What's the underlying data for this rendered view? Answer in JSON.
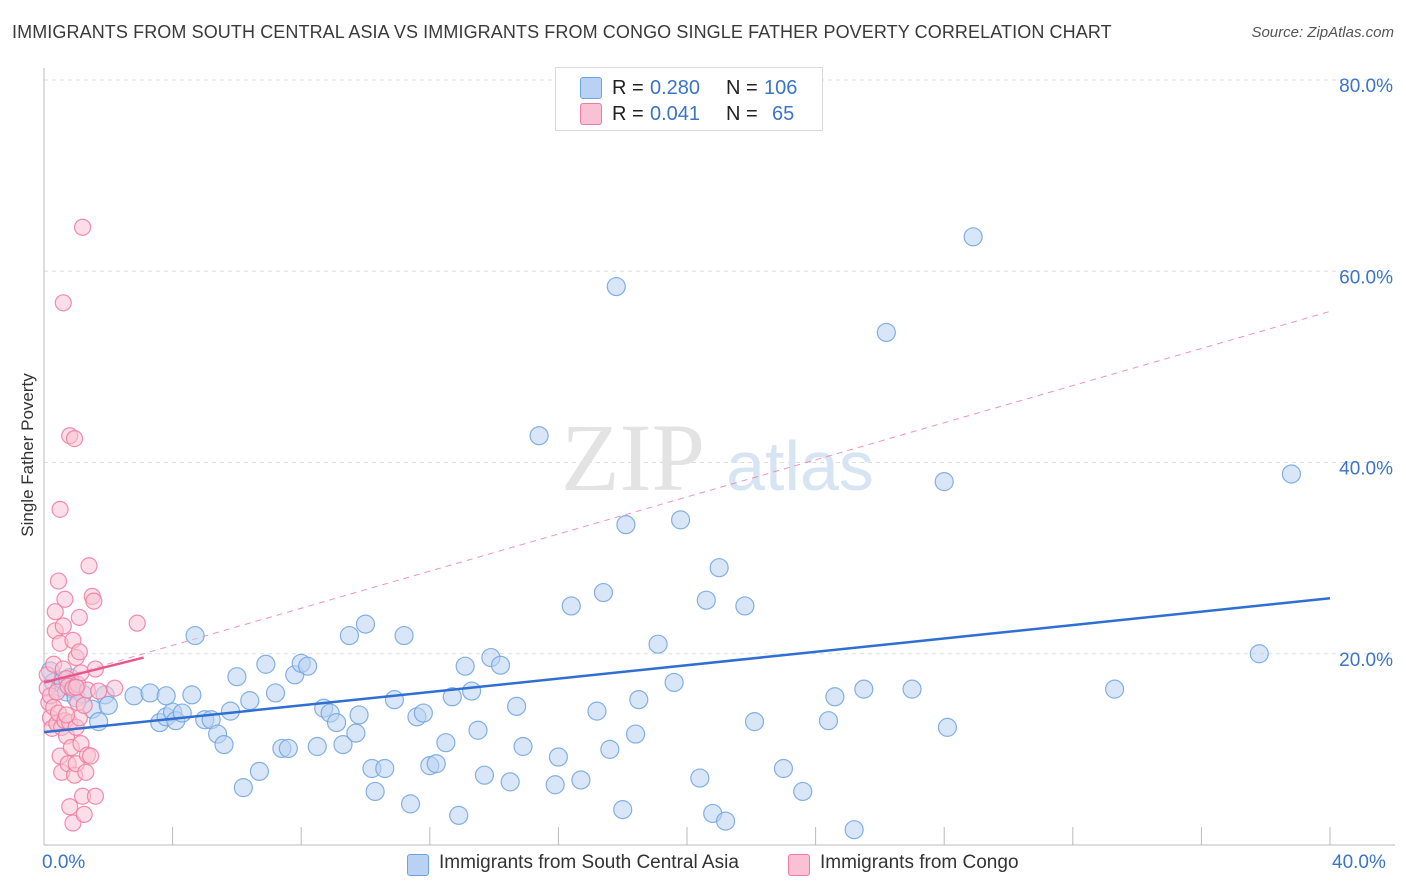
{
  "title": "IMMIGRANTS FROM SOUTH CENTRAL ASIA VS IMMIGRANTS FROM CONGO SINGLE FATHER POVERTY CORRELATION CHART",
  "source": "Source: ZipAtlas.com",
  "watermark": {
    "zip": "ZIP",
    "atlas": "atlas"
  },
  "legend": {
    "rows": [
      {
        "r_label": "R = ",
        "r_value": "0.280",
        "n_label": "N = ",
        "n_value": "106"
      },
      {
        "r_label": "R = ",
        "r_value": "0.041",
        "n_label": "N = ",
        "n_value": "65"
      }
    ]
  },
  "colors": {
    "blue": "#6fa3e0",
    "blue_line": "#2f6fd0",
    "blue_fill": "#b9d2f3",
    "pink": "#f07aa0",
    "pink_line": "#e8578a",
    "pink_fill": "#f8c2d4",
    "grid": "#dddddd",
    "axis_text": "#3b74c9"
  },
  "chart_data": {
    "type": "scatter",
    "title": "IMMIGRANTS FROM SOUTH CENTRAL ASIA VS IMMIGRANTS FROM CONGO SINGLE FATHER POVERTY CORRELATION CHART",
    "xlabel": "",
    "ylabel": "Single Father Poverty",
    "xlim": [
      0,
      40
    ],
    "ylim": [
      0,
      80
    ],
    "x_tick_labels": [
      "0.0%",
      "40.0%"
    ],
    "y_tick_values": [
      20,
      40,
      60,
      80
    ],
    "y_tick_labels": [
      "20.0%",
      "40.0%",
      "60.0%",
      "80.0%"
    ],
    "grid": true,
    "legend_position": "top-center",
    "series": [
      {
        "name": "Immigrants from South Central Asia",
        "color": "#6fa3e0",
        "r": 0.28,
        "n": 106,
        "trend": {
          "x": [
            0,
            40
          ],
          "y": [
            11.8,
            25.8
          ],
          "style": "solid"
        },
        "points": [
          [
            0.2,
            18.2
          ],
          [
            0.3,
            17.0
          ],
          [
            0.5,
            16.5
          ],
          [
            0.6,
            17.2
          ],
          [
            0.7,
            16.0
          ],
          [
            0.8,
            17.5
          ],
          [
            0.9,
            16.3
          ],
          [
            1.0,
            15.4
          ],
          [
            1.2,
            15.8
          ],
          [
            1.5,
            14.2
          ],
          [
            1.7,
            12.9
          ],
          [
            1.9,
            15.7
          ],
          [
            2.0,
            14.6
          ],
          [
            2.8,
            15.6
          ],
          [
            3.3,
            15.9
          ],
          [
            3.6,
            12.8
          ],
          [
            3.8,
            13.4
          ],
          [
            4.0,
            13.9
          ],
          [
            4.1,
            13.0
          ],
          [
            4.3,
            13.8
          ],
          [
            4.6,
            15.7
          ],
          [
            4.7,
            21.9
          ],
          [
            5.0,
            13.1
          ],
          [
            5.2,
            13.1
          ],
          [
            5.4,
            11.6
          ],
          [
            5.6,
            10.5
          ],
          [
            5.8,
            14.0
          ],
          [
            6.0,
            17.6
          ],
          [
            6.2,
            6.0
          ],
          [
            6.4,
            15.1
          ],
          [
            6.7,
            7.7
          ],
          [
            6.9,
            18.9
          ],
          [
            7.2,
            15.9
          ],
          [
            7.4,
            10.1
          ],
          [
            7.6,
            10.1
          ],
          [
            7.8,
            17.8
          ],
          [
            8.0,
            19.0
          ],
          [
            8.2,
            18.7
          ],
          [
            8.5,
            10.3
          ],
          [
            8.7,
            14.3
          ],
          [
            8.9,
            13.8
          ],
          [
            9.1,
            12.8
          ],
          [
            9.3,
            10.5
          ],
          [
            9.5,
            21.9
          ],
          [
            9.7,
            11.7
          ],
          [
            9.8,
            13.6
          ],
          [
            10.0,
            23.1
          ],
          [
            10.2,
            8.0
          ],
          [
            10.3,
            5.6
          ],
          [
            10.6,
            8.0
          ],
          [
            10.9,
            15.2
          ],
          [
            11.2,
            21.9
          ],
          [
            11.4,
            4.3
          ],
          [
            11.6,
            13.4
          ],
          [
            11.8,
            13.8
          ],
          [
            12.0,
            8.3
          ],
          [
            12.2,
            8.5
          ],
          [
            12.5,
            10.7
          ],
          [
            12.7,
            15.5
          ],
          [
            12.9,
            3.1
          ],
          [
            13.1,
            18.7
          ],
          [
            13.3,
            16.1
          ],
          [
            13.5,
            12.0
          ],
          [
            13.7,
            7.3
          ],
          [
            13.9,
            19.6
          ],
          [
            14.2,
            18.8
          ],
          [
            14.5,
            6.6
          ],
          [
            14.7,
            14.5
          ],
          [
            14.9,
            10.3
          ],
          [
            15.4,
            42.8
          ],
          [
            15.9,
            6.3
          ],
          [
            16.0,
            9.2
          ],
          [
            16.4,
            25.0
          ],
          [
            16.7,
            6.8
          ],
          [
            17.2,
            14.0
          ],
          [
            17.4,
            26.4
          ],
          [
            17.6,
            10.0
          ],
          [
            17.8,
            58.4
          ],
          [
            18.0,
            3.7
          ],
          [
            18.1,
            33.5
          ],
          [
            18.4,
            11.6
          ],
          [
            18.5,
            15.2
          ],
          [
            19.1,
            21.0
          ],
          [
            19.6,
            17.0
          ],
          [
            19.8,
            34.0
          ],
          [
            20.4,
            7.0
          ],
          [
            20.6,
            25.6
          ],
          [
            20.8,
            3.3
          ],
          [
            21.0,
            29.0
          ],
          [
            21.2,
            2.5
          ],
          [
            21.8,
            25.0
          ],
          [
            22.1,
            12.9
          ],
          [
            23.0,
            8.0
          ],
          [
            23.6,
            5.6
          ],
          [
            24.4,
            13.0
          ],
          [
            24.6,
            15.5
          ],
          [
            25.2,
            1.6
          ],
          [
            25.5,
            16.3
          ],
          [
            26.2,
            53.6
          ],
          [
            27.0,
            16.3
          ],
          [
            28.1,
            12.3
          ],
          [
            28.0,
            38.0
          ],
          [
            28.9,
            63.6
          ],
          [
            33.3,
            16.3
          ],
          [
            37.8,
            20.0
          ],
          [
            38.8,
            38.8
          ],
          [
            3.8,
            15.6
          ]
        ]
      },
      {
        "name": "Immigrants from Congo",
        "color": "#f07aa0",
        "r": 0.041,
        "n": 65,
        "trend": {
          "x": [
            0,
            3.1
          ],
          "y": [
            17.0,
            19.6
          ],
          "style": "solid"
        },
        "trend_extended": {
          "x": [
            0,
            40
          ],
          "y": [
            17.0,
            55.8
          ],
          "style": "dashed"
        },
        "points": [
          [
            0.1,
            17.8
          ],
          [
            0.1,
            16.4
          ],
          [
            0.15,
            14.9
          ],
          [
            0.2,
            13.3
          ],
          [
            0.2,
            15.6
          ],
          [
            0.25,
            12.2
          ],
          [
            0.3,
            18.9
          ],
          [
            0.3,
            14.4
          ],
          [
            0.35,
            22.4
          ],
          [
            0.35,
            24.4
          ],
          [
            0.4,
            12.7
          ],
          [
            0.4,
            16.0
          ],
          [
            0.45,
            13.8
          ],
          [
            0.45,
            27.6
          ],
          [
            0.5,
            21.1
          ],
          [
            0.5,
            35.1
          ],
          [
            0.5,
            9.3
          ],
          [
            0.55,
            7.6
          ],
          [
            0.55,
            12.3
          ],
          [
            0.6,
            18.4
          ],
          [
            0.6,
            22.9
          ],
          [
            0.6,
            56.7
          ],
          [
            0.65,
            25.7
          ],
          [
            0.65,
            13.0
          ],
          [
            0.7,
            17.4
          ],
          [
            0.7,
            11.4
          ],
          [
            0.75,
            16.6
          ],
          [
            0.75,
            8.5
          ],
          [
            0.8,
            42.8
          ],
          [
            0.8,
            4.0
          ],
          [
            0.8,
            12.8
          ],
          [
            0.85,
            10.2
          ],
          [
            0.9,
            21.4
          ],
          [
            0.9,
            16.4
          ],
          [
            0.9,
            2.3
          ],
          [
            0.95,
            42.5
          ],
          [
            0.95,
            7.3
          ],
          [
            1.0,
            12.3
          ],
          [
            1.0,
            19.6
          ],
          [
            1.0,
            8.5
          ],
          [
            1.05,
            16.8
          ],
          [
            1.05,
            14.9
          ],
          [
            1.1,
            20.2
          ],
          [
            1.1,
            13.3
          ],
          [
            1.1,
            23.8
          ],
          [
            1.15,
            10.6
          ],
          [
            1.15,
            18.0
          ],
          [
            1.2,
            5.1
          ],
          [
            1.2,
            64.6
          ],
          [
            1.25,
            3.2
          ],
          [
            1.25,
            14.6
          ],
          [
            1.3,
            7.6
          ],
          [
            1.35,
            16.2
          ],
          [
            1.35,
            9.4
          ],
          [
            1.4,
            29.2
          ],
          [
            1.45,
            9.3
          ],
          [
            1.5,
            26.0
          ],
          [
            1.55,
            25.5
          ],
          [
            1.6,
            5.1
          ],
          [
            1.6,
            18.4
          ],
          [
            1.7,
            16.1
          ],
          [
            2.2,
            16.4
          ],
          [
            2.9,
            23.2
          ],
          [
            0.7,
            13.6
          ],
          [
            1.0,
            16.5
          ]
        ]
      }
    ]
  },
  "bottom_legend": [
    "Immigrants from South Central Asia",
    "Immigrants from Congo"
  ]
}
